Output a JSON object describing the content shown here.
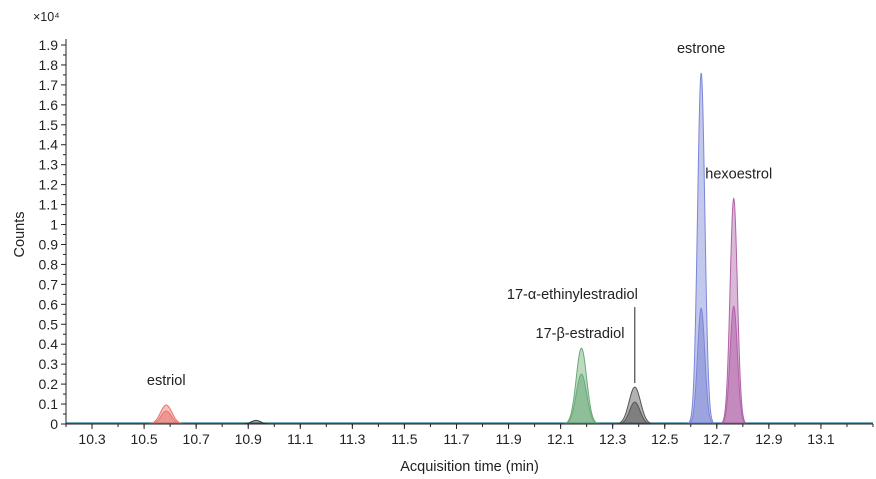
{
  "chart_data": {
    "type": "area",
    "title": "",
    "xlabel": "Acquisition time (min)",
    "ylabel": "Counts",
    "y_multiplier": "×10⁴",
    "xlim": [
      10.2,
      13.3
    ],
    "ylim": [
      0,
      1.9
    ],
    "x_ticks": [
      "10.3",
      "10.5",
      "10.7",
      "10.9",
      "11.1",
      "11.3",
      "11.5",
      "11.7",
      "11.9",
      "12.1",
      "12.3",
      "12.5",
      "12.7",
      "12.9",
      "13.1"
    ],
    "y_ticks": [
      "0",
      "0.1",
      "0.2",
      "0.3",
      "0.4",
      "0.5",
      "0.6",
      "0.7",
      "0.8",
      "0.9",
      "1",
      "1.1",
      "1.2",
      "1.3",
      "1.4",
      "1.5",
      "1.6",
      "1.7",
      "1.8",
      "1.9"
    ],
    "grid": false,
    "legend": "none",
    "series": [
      {
        "color": "#e8746c",
        "peaks": [
          {
            "x": 10.585,
            "height": 0.095,
            "width": 0.022
          },
          {
            "x": 10.585,
            "height": 0.065,
            "width": 0.02
          }
        ]
      },
      {
        "color": "#3a3a3a",
        "peaks": [
          {
            "x": 10.93,
            "height": 0.018,
            "width": 0.018
          }
        ]
      },
      {
        "color": "#6aaa78",
        "peaks": [
          {
            "x": 12.18,
            "height": 0.38,
            "width": 0.02
          },
          {
            "x": 12.18,
            "height": 0.25,
            "width": 0.02
          }
        ]
      },
      {
        "color": "#555555",
        "peaks": [
          {
            "x": 12.385,
            "height": 0.185,
            "width": 0.022
          },
          {
            "x": 12.385,
            "height": 0.11,
            "width": 0.02
          }
        ]
      },
      {
        "color": "#7b86d6",
        "peaks": [
          {
            "x": 12.64,
            "height": 1.76,
            "width": 0.014
          },
          {
            "x": 12.64,
            "height": 0.58,
            "width": 0.014
          }
        ]
      },
      {
        "color": "#b062a8",
        "peaks": [
          {
            "x": 12.765,
            "height": 1.13,
            "width": 0.014
          },
          {
            "x": 12.765,
            "height": 0.59,
            "width": 0.014
          }
        ]
      }
    ],
    "annotations": [
      {
        "text": "estriol",
        "x": 10.585
      },
      {
        "text": "17-α-ethinylestradiol",
        "x": 12.385
      },
      {
        "text": "17-β-estradiol",
        "x": 12.18
      },
      {
        "text": "estrone",
        "x": 12.64
      },
      {
        "text": "hexoestrol",
        "x": 12.765
      }
    ]
  }
}
